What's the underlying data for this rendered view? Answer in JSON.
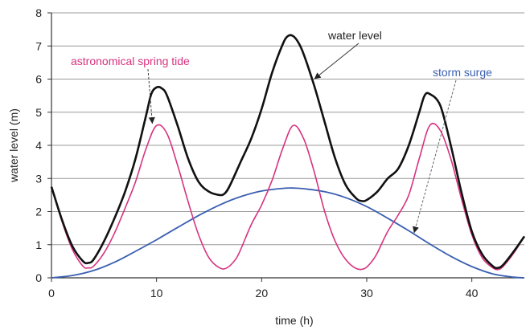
{
  "chart_data": {
    "type": "line",
    "xlabel": "time (h)",
    "ylabel": "water level (m)",
    "xlim": [
      0,
      45
    ],
    "ylim": [
      0,
      8
    ],
    "xticks": [
      0,
      10,
      20,
      30,
      40
    ],
    "yticks": [
      0,
      1,
      2,
      3,
      4,
      5,
      6,
      7,
      8
    ],
    "grid": "horizontal",
    "colors": {
      "water_level": "#111111",
      "spring_tide": "#d6337f",
      "storm_surge": "#3a5fb0",
      "grid": "#9a9a9a",
      "ylabel": "#7a1f4a"
    },
    "series": [
      {
        "name": "water level",
        "color": "#111111",
        "x": [
          0,
          1,
          2,
          3,
          3.5,
          4,
          5,
          6,
          7,
          8,
          9,
          9.5,
          10,
          10.5,
          11,
          12,
          13,
          14,
          15,
          16,
          16.5,
          17,
          18,
          19,
          20,
          21,
          22,
          22.5,
          23,
          23.5,
          24,
          25,
          26,
          27,
          28,
          29,
          29.5,
          30,
          31,
          32,
          33,
          34,
          35,
          35.5,
          36,
          37,
          38,
          39,
          40,
          41,
          42,
          42.5,
          43,
          44,
          45
        ],
        "y": [
          2.75,
          1.75,
          0.95,
          0.5,
          0.45,
          0.55,
          1.1,
          1.8,
          2.6,
          3.6,
          4.9,
          5.55,
          5.75,
          5.72,
          5.5,
          4.6,
          3.6,
          2.9,
          2.6,
          2.5,
          2.55,
          2.8,
          3.5,
          4.2,
          5.1,
          6.2,
          7.05,
          7.3,
          7.3,
          7.1,
          6.75,
          5.8,
          4.7,
          3.6,
          2.8,
          2.4,
          2.32,
          2.35,
          2.6,
          3.0,
          3.3,
          4.0,
          5.0,
          5.5,
          5.55,
          5.2,
          4.0,
          2.6,
          1.4,
          0.7,
          0.35,
          0.3,
          0.4,
          0.8,
          1.25
        ]
      },
      {
        "name": "astronomical spring tide",
        "color": "#d6337f",
        "x": [
          0,
          1,
          2,
          3,
          3.5,
          4,
          5,
          6,
          7,
          8,
          9,
          10,
          11,
          12,
          13,
          14,
          15,
          16,
          16.7,
          17.5,
          18,
          19,
          20,
          21,
          22,
          23,
          24,
          25,
          26,
          27,
          28,
          29,
          29.8,
          30.5,
          31,
          32,
          33,
          34,
          35,
          36,
          37,
          38,
          39,
          40,
          41,
          42,
          42.5,
          43,
          44,
          45
        ],
        "y": [
          2.75,
          1.7,
          0.85,
          0.35,
          0.3,
          0.35,
          0.75,
          1.35,
          2.1,
          2.9,
          3.9,
          4.6,
          4.35,
          3.4,
          2.3,
          1.3,
          0.6,
          0.3,
          0.3,
          0.55,
          0.85,
          1.6,
          2.2,
          2.95,
          3.9,
          4.6,
          4.2,
          3.2,
          2.0,
          1.1,
          0.55,
          0.28,
          0.28,
          0.5,
          0.75,
          1.4,
          1.9,
          2.5,
          3.6,
          4.6,
          4.45,
          3.6,
          2.4,
          1.3,
          0.6,
          0.3,
          0.25,
          0.35,
          0.75,
          1.25
        ]
      },
      {
        "name": "storm surge",
        "color": "#3a5fb0",
        "x": [
          0,
          2,
          4,
          6,
          8,
          10,
          12,
          14,
          16,
          18,
          20,
          22,
          23,
          24,
          26,
          28,
          30,
          32,
          34,
          36,
          38,
          40,
          42,
          44,
          45
        ],
        "y": [
          0,
          0.07,
          0.22,
          0.47,
          0.8,
          1.15,
          1.52,
          1.88,
          2.2,
          2.45,
          2.62,
          2.7,
          2.71,
          2.69,
          2.6,
          2.42,
          2.15,
          1.8,
          1.42,
          1.02,
          0.65,
          0.34,
          0.12,
          0.02,
          0
        ]
      }
    ],
    "annotations": [
      {
        "text": "water level",
        "color": "#222222",
        "target_series": "water level",
        "target_x": 25,
        "target_y": 6.0
      },
      {
        "text": "astronomical spring tide",
        "color": "#d6337f",
        "target_series": "astronomical spring tide",
        "target_x": 9.6,
        "target_y": 4.65
      },
      {
        "text": "storm surge",
        "color": "#3a5fb0",
        "target_series": "storm surge",
        "target_x": 34.5,
        "target_y": 1.35
      }
    ]
  }
}
